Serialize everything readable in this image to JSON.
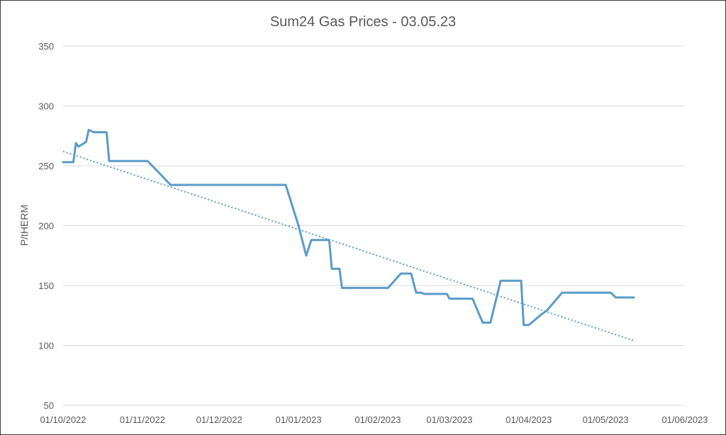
{
  "chart_data": {
    "type": "line",
    "title": "Sum24 Gas Prices - 03.05.23",
    "xlabel": "",
    "ylabel": "P/tHERM",
    "ylim": [
      50,
      350
    ],
    "yticks": [
      50,
      100,
      150,
      200,
      250,
      300,
      350
    ],
    "xlim": [
      "2022-10-01",
      "2023-06-01"
    ],
    "xticks": [
      {
        "date": "2022-10-01",
        "label": "01/10/2022"
      },
      {
        "date": "2022-11-01",
        "label": "01/11/2022"
      },
      {
        "date": "2022-12-01",
        "label": "01/12/2022"
      },
      {
        "date": "2023-01-01",
        "label": "01/01/2023"
      },
      {
        "date": "2023-02-01",
        "label": "01/02/2023"
      },
      {
        "date": "2023-03-01",
        "label": "01/03/2023"
      },
      {
        "date": "2023-04-01",
        "label": "01/04/2023"
      },
      {
        "date": "2023-05-01",
        "label": "01/05/2023"
      },
      {
        "date": "2023-06-01",
        "label": "01/06/2023"
      }
    ],
    "grid": true,
    "series": [
      {
        "color": "#5b9bc8",
        "points": [
          [
            "2022-10-01",
            253
          ],
          [
            "2022-10-05",
            253
          ],
          [
            "2022-10-06",
            269
          ],
          [
            "2022-10-07",
            266
          ],
          [
            "2022-10-10",
            270
          ],
          [
            "2022-10-11",
            280
          ],
          [
            "2022-10-13",
            278
          ],
          [
            "2022-10-18",
            278
          ],
          [
            "2022-10-19",
            254
          ],
          [
            "2022-10-24",
            254
          ],
          [
            "2022-10-31",
            254
          ],
          [
            "2022-11-03",
            254
          ],
          [
            "2022-11-08",
            243
          ],
          [
            "2022-11-12",
            234
          ],
          [
            "2022-12-22",
            234
          ],
          [
            "2022-12-24",
            234
          ],
          [
            "2022-12-27",
            234
          ],
          [
            "2023-01-01",
            200
          ],
          [
            "2023-01-04",
            175
          ],
          [
            "2023-01-06",
            188
          ],
          [
            "2023-01-13",
            188
          ],
          [
            "2023-01-14",
            164
          ],
          [
            "2023-01-17",
            164
          ],
          [
            "2023-01-18",
            148
          ],
          [
            "2023-02-05",
            148
          ],
          [
            "2023-02-10",
            160
          ],
          [
            "2023-02-14",
            160
          ],
          [
            "2023-02-16",
            144
          ],
          [
            "2023-02-18",
            144
          ],
          [
            "2023-02-19",
            143
          ],
          [
            "2023-02-28",
            143
          ],
          [
            "2023-03-01",
            139
          ],
          [
            "2023-03-10",
            139
          ],
          [
            "2023-03-14",
            119
          ],
          [
            "2023-03-17",
            119
          ],
          [
            "2023-03-21",
            154
          ],
          [
            "2023-03-29",
            154
          ],
          [
            "2023-03-30",
            117
          ],
          [
            "2023-04-01",
            117
          ],
          [
            "2023-04-06",
            126
          ],
          [
            "2023-04-08",
            129
          ],
          [
            "2023-04-14",
            144
          ],
          [
            "2023-05-03",
            144
          ],
          [
            "2023-05-05",
            140
          ],
          [
            "2023-05-12",
            140
          ]
        ]
      }
    ],
    "trendline": {
      "style": "dotted",
      "color": "#5b9bc8",
      "start": [
        "2022-10-01",
        262
      ],
      "end": [
        "2023-05-12",
        104
      ]
    }
  }
}
